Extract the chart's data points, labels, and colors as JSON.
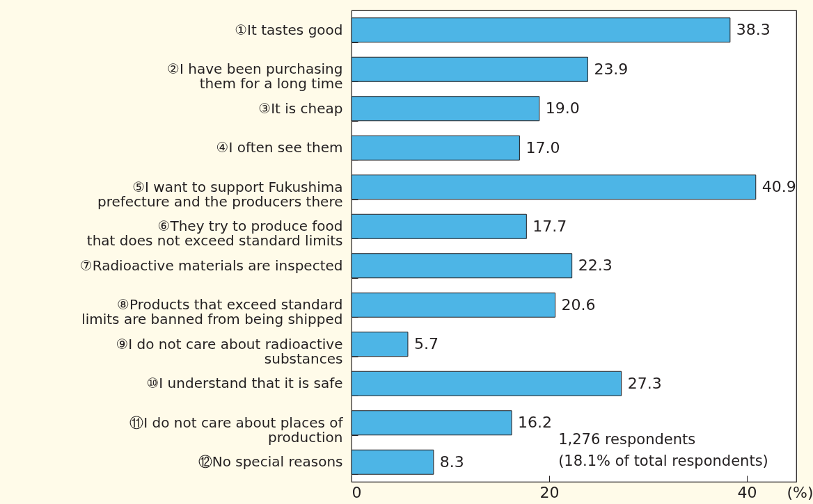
{
  "chart_data": {
    "type": "bar",
    "orientation": "horizontal",
    "categories": [
      "①It tastes good",
      "②I have been purchasing\nthem for a long time",
      "③It is cheap",
      "④I often see them",
      "⑤I want to support Fukushima\nprefecture and the producers there",
      "⑥They try to produce food\nthat does not exceed standard limits",
      "⑦Radioactive materials are inspected",
      "⑧Products that exceed standard\nlimits are banned from being shipped",
      "⑨I do not care about radioactive\nsubstances",
      "⑩I understand that it is safe",
      "⑪I do not care about places of\nproduction",
      "⑫No special reasons"
    ],
    "values": [
      38.3,
      23.9,
      19.0,
      17.0,
      40.9,
      17.7,
      22.3,
      20.6,
      5.7,
      27.3,
      16.2,
      8.3
    ],
    "value_labels": [
      "38.3",
      "23.9",
      "19.0",
      "17.0",
      "40.9",
      "17.7",
      "22.3",
      "20.6",
      "5.7",
      "27.3",
      "16.2",
      "8.3"
    ],
    "color": "#4db5e6",
    "xlim": [
      0,
      45
    ],
    "xticks": [
      0,
      20,
      40
    ],
    "xlabel": "(%)",
    "annotations": [
      "1,276 respondents\n(18.1% of total respondents)"
    ]
  }
}
